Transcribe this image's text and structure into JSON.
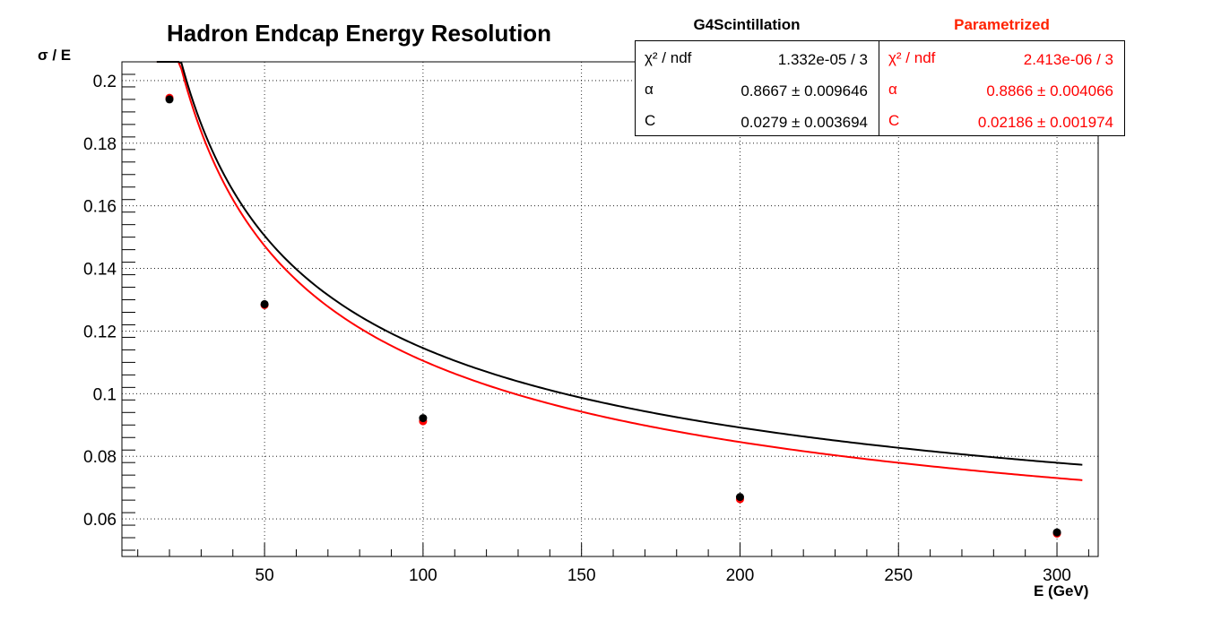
{
  "chart_data": {
    "type": "line",
    "title": "Hadron Endcap Energy Resolution",
    "xlabel": "E (GeV)",
    "ylabel": "σ / E",
    "xlim": [
      5,
      313
    ],
    "ylim": [
      0.048,
      0.206
    ],
    "xticks": [
      50,
      100,
      150,
      200,
      250,
      300
    ],
    "xtick_labels": [
      "50",
      "100",
      "150",
      "200",
      "250",
      "300"
    ],
    "yticks": [
      0.06,
      0.08,
      0.1,
      0.12,
      0.14,
      0.16,
      0.18,
      0.2
    ],
    "ytick_labels": [
      "0.06",
      "0.08",
      "0.1",
      "0.12",
      "0.14",
      "0.16",
      "0.18",
      "0.2"
    ],
    "grid": true,
    "series": [
      {
        "name": "G4Scintillation",
        "color": "#000000",
        "points": {
          "x": [
            20,
            50,
            100,
            200,
            300
          ],
          "y": [
            0.194,
            0.1286,
            0.0922,
            0.067,
            0.0557
          ]
        },
        "fit": {
          "alpha": 0.8667,
          "C": 0.0279,
          "x_range": [
            16,
            308
          ]
        },
        "stats": [
          {
            "name": "χ² / ndf",
            "value": "1.332e-05 / 3"
          },
          {
            "name": "α",
            "value": "0.8667 ± 0.009646"
          },
          {
            "name": "C",
            "value": "0.0279 ± 0.003694"
          }
        ]
      },
      {
        "name": "Parametrized",
        "color": "#ff0000",
        "points": {
          "x": [
            20,
            50,
            100,
            200,
            300
          ],
          "y": [
            0.1945,
            0.1283,
            0.0912,
            0.0663,
            0.0553
          ]
        },
        "fit": {
          "alpha": 0.8866,
          "C": 0.02186,
          "x_range": [
            16,
            308
          ]
        },
        "stats": [
          {
            "name": "χ² / ndf",
            "value": "2.413e-06 / 3"
          },
          {
            "name": "α",
            "value": "0.8866 ± 0.004066"
          },
          {
            "name": "C",
            "value": "0.02186 ± 0.001974"
          }
        ]
      }
    ]
  }
}
